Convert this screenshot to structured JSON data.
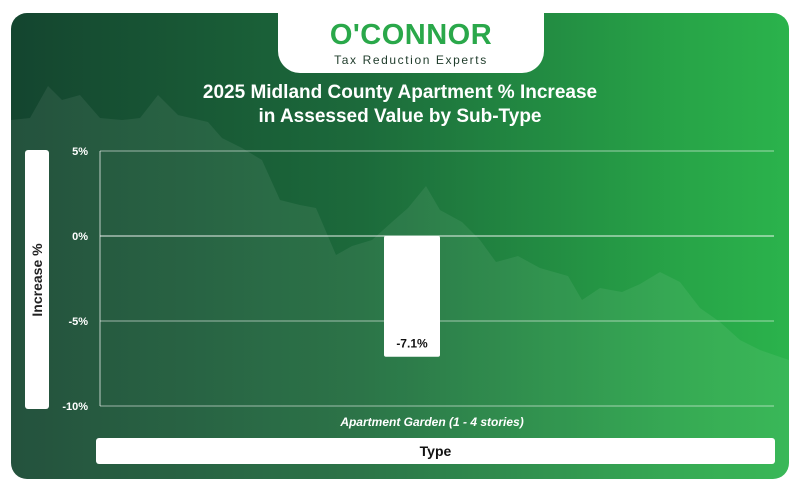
{
  "brand": {
    "name": "O'CONNOR",
    "tagline": "Tax Reduction Experts"
  },
  "chart_data": {
    "type": "bar",
    "title_line1": "2025 Midland County Apartment % Increase",
    "title_line2": "in Assessed Value by Sub-Type",
    "xlabel": "Type",
    "ylabel": "Increase %",
    "categories": [
      "Apartment Garden (1 - 4 stories)"
    ],
    "values": [
      -7.1
    ],
    "data_labels": [
      "-7.1%"
    ],
    "ylim": [
      -10,
      5
    ],
    "yticks": [
      5,
      0,
      -5,
      -10
    ],
    "ytick_labels": [
      "5%",
      "0%",
      "-5%",
      "-10%"
    ],
    "grid": true,
    "legend": "none",
    "colors": {
      "bar": "#ffffff",
      "background_start": "#14452f",
      "background_end": "#2bb34c",
      "brand_green": "#2aa84a"
    }
  }
}
